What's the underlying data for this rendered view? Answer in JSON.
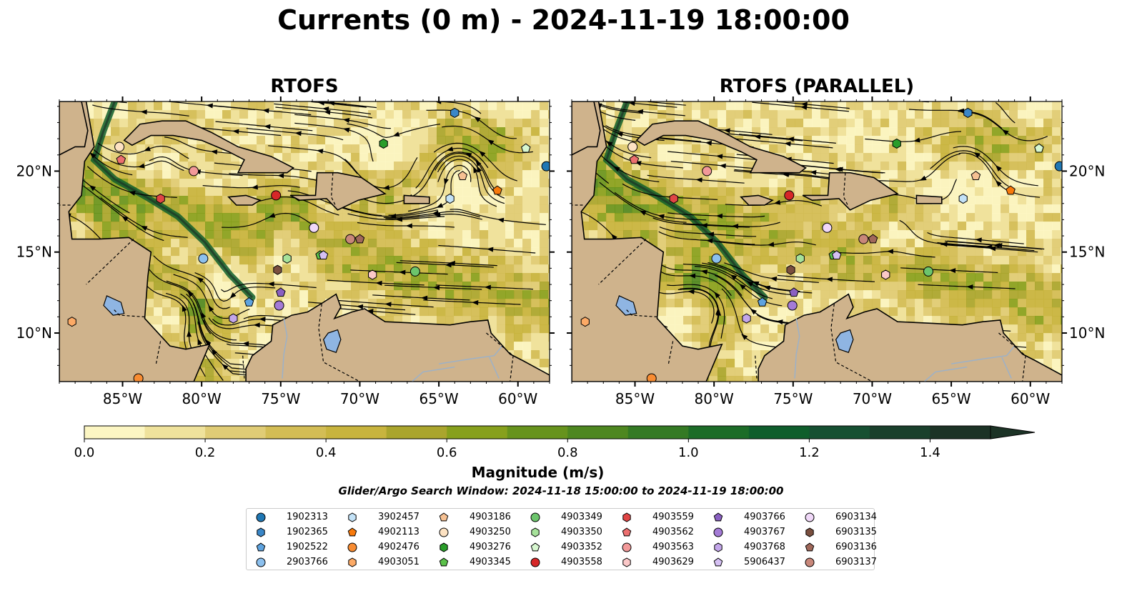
{
  "figure": {
    "title": "Currents (0 m) - 2024-11-19 18:00:00",
    "panels": [
      {
        "title": "RTOFS",
        "variant": 0
      },
      {
        "title": "RTOFS (PARALLEL)",
        "variant": 1
      }
    ],
    "lon_ticks": [
      "85°W",
      "80°W",
      "75°W",
      "70°W",
      "65°W",
      "60°W"
    ],
    "lat_ticks": [
      "20°N",
      "15°N",
      "10°N"
    ],
    "colorbar": {
      "label": "Magnitude (m/s)",
      "ticks": [
        "0.0",
        "0.2",
        "0.4",
        "0.6",
        "0.8",
        "1.0",
        "1.2",
        "1.4"
      ],
      "tick_values": [
        0,
        0.2,
        0.4,
        0.6,
        0.8,
        1.0,
        1.2,
        1.4
      ],
      "range": [
        0,
        1.5
      ],
      "extend": "max",
      "colors": [
        "#fcf6c3",
        "#efe29c",
        "#e0cc76",
        "#d3bd55",
        "#c8b43e",
        "#aaa52d",
        "#87a01d",
        "#67931d",
        "#4e8720",
        "#347a24",
        "#1c6c28",
        "#0f5e2c",
        "#165032",
        "#1a402c",
        "#1c3326"
      ]
    },
    "search_window": "Glider/Argo Search Window: 2024-11-18 15:00:00 to 2024-11-19 18:00:00"
  },
  "chart_data": {
    "type": "heatmap",
    "description_kind": "map",
    "title": "Currents (0 m) - 2024-11-19 18:00:00",
    "x_range": [
      -89,
      -58
    ],
    "y_range": [
      7,
      24.3
    ],
    "xlabel": "",
    "ylabel": "",
    "legend_placement": "bottom-center",
    "floats": [
      {
        "id": "1902313",
        "marker": "circle",
        "color": "#1f77b4",
        "lon": -58.2,
        "lat": 20.3
      },
      {
        "id": "1902365",
        "marker": "hexagon",
        "color": "#3a87c8",
        "lon": -64.0,
        "lat": 23.6
      },
      {
        "id": "1902522",
        "marker": "pentagon",
        "color": "#5ea3df",
        "lon": -77.0,
        "lat": 11.9
      },
      {
        "id": "2903766",
        "marker": "circle",
        "color": "#8cc0ee",
        "lon": -79.9,
        "lat": 14.6
      },
      {
        "id": "3902457",
        "marker": "hexagon",
        "color": "#c3e2f7",
        "lon": -64.3,
        "lat": 18.3
      },
      {
        "id": "4902113",
        "marker": "pentagon",
        "color": "#f87a0b",
        "lon": -61.3,
        "lat": 18.8
      },
      {
        "id": "4902476",
        "marker": "circle",
        "color": "#f88c32",
        "lon": -84.0,
        "lat": 7.2
      },
      {
        "id": "4903051",
        "marker": "hexagon",
        "color": "#fcaa66",
        "lon": -88.2,
        "lat": 10.7
      },
      {
        "id": "4903186",
        "marker": "pentagon",
        "color": "#f6c193",
        "lon": -63.5,
        "lat": 19.7
      },
      {
        "id": "4903250",
        "marker": "circle",
        "color": "#fde2c2",
        "lon": -85.2,
        "lat": 21.5
      },
      {
        "id": "4903276",
        "marker": "hexagon",
        "color": "#2a9d2a",
        "lon": -68.5,
        "lat": 21.7
      },
      {
        "id": "4903345",
        "marker": "pentagon",
        "color": "#5bc14a",
        "lon": -72.5,
        "lat": 14.8
      },
      {
        "id": "4903349",
        "marker": "circle",
        "color": "#6cc56c",
        "lon": -66.5,
        "lat": 13.8
      },
      {
        "id": "4903350",
        "marker": "hexagon",
        "color": "#a6e29a",
        "lon": -74.6,
        "lat": 14.6
      },
      {
        "id": "4903352",
        "marker": "pentagon",
        "color": "#d7f7d0",
        "lon": -59.5,
        "lat": 21.4
      },
      {
        "id": "4903558",
        "marker": "circle",
        "color": "#d62728",
        "lon": -75.3,
        "lat": 18.5
      },
      {
        "id": "4903559",
        "marker": "hexagon",
        "color": "#e04545",
        "lon": -82.6,
        "lat": 18.3
      },
      {
        "id": "4903562",
        "marker": "pentagon",
        "color": "#ec6f6f",
        "lon": -85.1,
        "lat": 20.7
      },
      {
        "id": "4903563",
        "marker": "circle",
        "color": "#f29999",
        "lon": -80.5,
        "lat": 20.0
      },
      {
        "id": "4903629",
        "marker": "hexagon",
        "color": "#fbc8c8",
        "lon": -69.2,
        "lat": 13.6
      },
      {
        "id": "4903766",
        "marker": "pentagon",
        "color": "#8a60c2",
        "lon": -75.0,
        "lat": 12.5
      },
      {
        "id": "4903767",
        "marker": "circle",
        "color": "#a47bd6",
        "lon": -75.1,
        "lat": 11.7
      },
      {
        "id": "4903768",
        "marker": "hexagon",
        "color": "#c3a6ea",
        "lon": -78.0,
        "lat": 10.9
      },
      {
        "id": "5906437",
        "marker": "pentagon",
        "color": "#d5c0f3",
        "lon": -72.3,
        "lat": 14.8
      },
      {
        "id": "6903134",
        "marker": "circle",
        "color": "#f0d8f8",
        "lon": -72.9,
        "lat": 16.5
      },
      {
        "id": "6903135",
        "marker": "hexagon",
        "color": "#7a4f3f",
        "lon": -75.2,
        "lat": 13.9
      },
      {
        "id": "6903136",
        "marker": "pentagon",
        "color": "#a0685a",
        "lon": -70.0,
        "lat": 15.8
      },
      {
        "id": "6903137",
        "marker": "circle",
        "color": "#c8877a",
        "lon": -70.6,
        "lat": 15.8
      }
    ]
  },
  "colors": {
    "land": "#cfb38c",
    "water_inland": "#8fb5e2",
    "rivers": "#9cb1c8"
  }
}
